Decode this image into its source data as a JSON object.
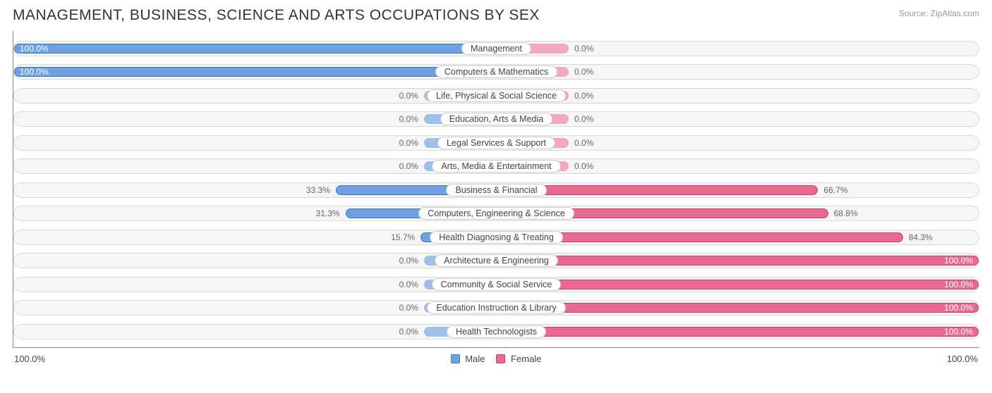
{
  "title": "MANAGEMENT, BUSINESS, SCIENCE AND ARTS OCCUPATIONS BY SEX",
  "source_label": "Source:",
  "source_value": "ZipAtlas.com",
  "axis_left": "100.0%",
  "axis_right": "100.0%",
  "legend": {
    "male": "Male",
    "female": "Female"
  },
  "colors": {
    "male_bar": "#6fa1e0",
    "male_bar_border": "#3b78cc",
    "female_bar": "#e86a8e",
    "female_bar_border": "#d13a68",
    "neutral_male": "#9fbfe8",
    "neutral_female": "#f3a8bf",
    "track_bg": "#f6f6f6",
    "track_border": "#d9d9d9",
    "label_bg": "#ffffff",
    "label_border": "#cccccc",
    "title_color": "#333333",
    "source_color": "#999999",
    "pct_text": "#666666",
    "swatch_male": "#6fa1e0",
    "swatch_female": "#e86a8e",
    "neutral_bar_half_width_pct": 7.5
  },
  "rows": [
    {
      "label": "Management",
      "male": 100.0,
      "female": 0.0,
      "male_text": "100.0%",
      "female_text": "0.0%"
    },
    {
      "label": "Computers & Mathematics",
      "male": 100.0,
      "female": 0.0,
      "male_text": "100.0%",
      "female_text": "0.0%"
    },
    {
      "label": "Life, Physical & Social Science",
      "male": 0.0,
      "female": 0.0,
      "male_text": "0.0%",
      "female_text": "0.0%"
    },
    {
      "label": "Education, Arts & Media",
      "male": 0.0,
      "female": 0.0,
      "male_text": "0.0%",
      "female_text": "0.0%"
    },
    {
      "label": "Legal Services & Support",
      "male": 0.0,
      "female": 0.0,
      "male_text": "0.0%",
      "female_text": "0.0%"
    },
    {
      "label": "Arts, Media & Entertainment",
      "male": 0.0,
      "female": 0.0,
      "male_text": "0.0%",
      "female_text": "0.0%"
    },
    {
      "label": "Business & Financial",
      "male": 33.3,
      "female": 66.7,
      "male_text": "33.3%",
      "female_text": "66.7%"
    },
    {
      "label": "Computers, Engineering & Science",
      "male": 31.3,
      "female": 68.8,
      "male_text": "31.3%",
      "female_text": "68.8%"
    },
    {
      "label": "Health Diagnosing & Treating",
      "male": 15.7,
      "female": 84.3,
      "male_text": "15.7%",
      "female_text": "84.3%"
    },
    {
      "label": "Architecture & Engineering",
      "male": 0.0,
      "female": 100.0,
      "male_text": "0.0%",
      "female_text": "100.0%"
    },
    {
      "label": "Community & Social Service",
      "male": 0.0,
      "female": 100.0,
      "male_text": "0.0%",
      "female_text": "100.0%"
    },
    {
      "label": "Education Instruction & Library",
      "male": 0.0,
      "female": 100.0,
      "male_text": "0.0%",
      "female_text": "100.0%"
    },
    {
      "label": "Health Technologists",
      "male": 0.0,
      "female": 100.0,
      "male_text": "0.0%",
      "female_text": "100.0%"
    }
  ]
}
